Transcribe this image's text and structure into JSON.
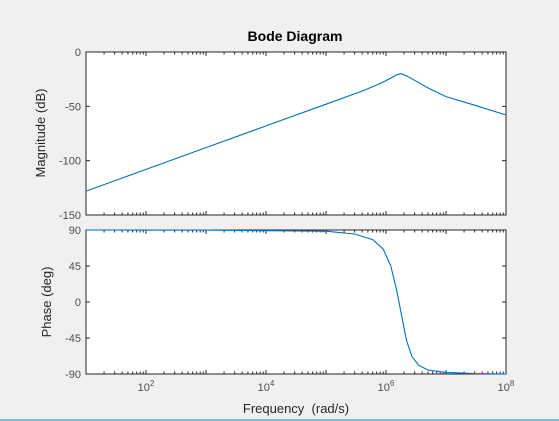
{
  "figure": {
    "title": "Bode Diagram",
    "xlabel": "Frequency  (rad/s)",
    "ylabel_mag": "Magnitude (dB)",
    "ylabel_phase": "Phase (deg)",
    "colors": {
      "curve": "#0072bd",
      "background": "#f0f0f0",
      "axes": "#ffffff",
      "bottom_strip": "#74c1dd"
    }
  },
  "chart_data": [
    {
      "type": "line",
      "title": "Bode Diagram",
      "ylabel": "Magnitude (dB)",
      "xlim": [
        10,
        100000000
      ],
      "ylim": [
        -150,
        0
      ],
      "xscale": "log",
      "yticks": [
        0,
        -50,
        -100,
        -150
      ],
      "grid": false,
      "series": [
        {
          "x": [
            10,
            100,
            1000,
            10000,
            100000,
            400000,
            800000,
            1200000,
            1500000,
            1800000,
            2200000,
            3000000,
            5000000,
            10000000,
            30000000,
            100000000
          ],
          "y": [
            -128,
            -108,
            -88,
            -68,
            -48,
            -36,
            -29,
            -24,
            -21,
            -20,
            -22,
            -26,
            -33,
            -41,
            -49,
            -58
          ]
        }
      ]
    },
    {
      "type": "line",
      "xlabel": "Frequency  (rad/s)",
      "ylabel": "Phase (deg)",
      "xlim": [
        10,
        100000000
      ],
      "ylim": [
        -90,
        90
      ],
      "xscale": "log",
      "xticks": [
        "10^2",
        "10^4",
        "10^6",
        "10^8"
      ],
      "yticks": [
        90,
        45,
        0,
        -45,
        -90
      ],
      "grid": false,
      "series": [
        {
          "x": [
            10,
            1000,
            100000,
            300000,
            600000,
            900000,
            1200000,
            1500000,
            1800000,
            2200000,
            2700000,
            3500000,
            5000000,
            10000000,
            30000000,
            100000000
          ],
          "y": [
            90,
            89.9,
            88.5,
            85,
            78,
            66,
            45,
            15,
            -15,
            -48,
            -68,
            -79,
            -85,
            -88,
            -89.5,
            -90
          ]
        }
      ]
    }
  ]
}
